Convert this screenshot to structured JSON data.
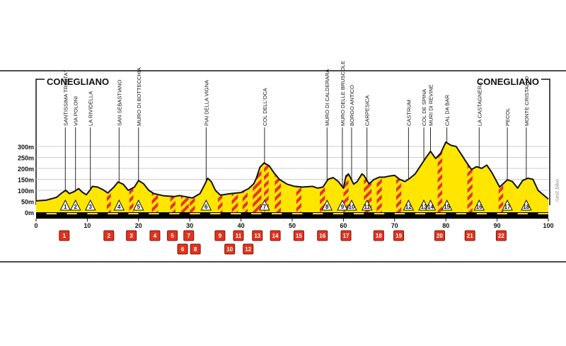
{
  "start_label": "CONEGLIANO",
  "end_label": "CONEGLIANO",
  "watermark": "nest.bike",
  "colors": {
    "profile_fill": "#ffe600",
    "profile_stroke": "#111111",
    "sector_stripe": "#e8322b",
    "marker_box": "#e2331d",
    "marker_box_border": "#7a140a",
    "track": "#000000",
    "gridline": "#bdbdbd",
    "triangle_fill": "#ffffff"
  },
  "chart_data": {
    "type": "area",
    "title": "",
    "xlabel": "",
    "ylabel": "",
    "xlim": [
      0,
      100
    ],
    "ylim": [
      0,
      300
    ],
    "grid": true,
    "x_ticks": [
      0,
      10,
      20,
      30,
      40,
      50,
      60,
      70,
      80,
      90,
      100
    ],
    "y_ticks": [
      {
        "value": 300,
        "label": "300m"
      },
      {
        "value": 250,
        "label": "250m"
      },
      {
        "value": 200,
        "label": "200m"
      },
      {
        "value": 150,
        "label": "150m"
      },
      {
        "value": 100,
        "label": "100m"
      },
      {
        "value": 50,
        "label": "50m"
      },
      {
        "value": 0,
        "label": "0m"
      }
    ],
    "profile": [
      [
        0,
        52
      ],
      [
        2,
        55
      ],
      [
        4,
        68
      ],
      [
        5,
        88
      ],
      [
        5.8,
        100
      ],
      [
        6.5,
        85
      ],
      [
        7.5,
        95
      ],
      [
        8.3,
        108
      ],
      [
        9,
        92
      ],
      [
        9.8,
        80
      ],
      [
        10.5,
        100
      ],
      [
        11,
        118
      ],
      [
        12,
        115
      ],
      [
        13,
        104
      ],
      [
        14,
        88
      ],
      [
        15.2,
        115
      ],
      [
        16,
        138
      ],
      [
        17,
        128
      ],
      [
        18,
        100
      ],
      [
        19.2,
        115
      ],
      [
        20,
        145
      ],
      [
        21,
        130
      ],
      [
        22,
        100
      ],
      [
        23,
        85
      ],
      [
        25,
        75
      ],
      [
        27,
        72
      ],
      [
        28,
        76
      ],
      [
        29,
        72
      ],
      [
        30.5,
        65
      ],
      [
        32,
        85
      ],
      [
        33,
        130
      ],
      [
        33.5,
        155
      ],
      [
        34.2,
        140
      ],
      [
        35,
        100
      ],
      [
        36,
        78
      ],
      [
        38,
        85
      ],
      [
        40,
        90
      ],
      [
        41.5,
        108
      ],
      [
        42.5,
        130
      ],
      [
        43,
        155
      ],
      [
        43.7,
        205
      ],
      [
        44.5,
        225
      ],
      [
        45.5,
        212
      ],
      [
        46.5,
        178
      ],
      [
        47.5,
        150
      ],
      [
        49,
        128
      ],
      [
        50.5,
        118
      ],
      [
        52,
        115
      ],
      [
        54,
        118
      ],
      [
        55,
        110
      ],
      [
        56,
        115
      ],
      [
        57,
        150
      ],
      [
        58,
        158
      ],
      [
        59,
        140
      ],
      [
        60,
        110
      ],
      [
        60.5,
        165
      ],
      [
        61,
        175
      ],
      [
        62,
        128
      ],
      [
        62.7,
        140
      ],
      [
        63.6,
        175
      ],
      [
        64,
        168
      ],
      [
        65,
        130
      ],
      [
        66,
        150
      ],
      [
        67,
        160
      ],
      [
        68,
        160
      ],
      [
        69,
        165
      ],
      [
        70,
        168
      ],
      [
        71,
        150
      ],
      [
        72,
        140
      ],
      [
        73,
        155
      ],
      [
        74,
        175
      ],
      [
        75,
        210
      ],
      [
        76,
        245
      ],
      [
        77,
        278
      ],
      [
        78,
        245
      ],
      [
        79,
        270
      ],
      [
        80,
        320
      ],
      [
        81,
        305
      ],
      [
        82,
        300
      ],
      [
        83,
        265
      ],
      [
        84,
        228
      ],
      [
        85,
        195
      ],
      [
        86,
        208
      ],
      [
        87,
        200
      ],
      [
        88,
        215
      ],
      [
        89,
        180
      ],
      [
        90.5,
        115
      ],
      [
        92,
        148
      ],
      [
        93,
        140
      ],
      [
        94,
        110
      ],
      [
        95,
        145
      ],
      [
        96,
        155
      ],
      [
        97,
        150
      ],
      [
        98,
        100
      ],
      [
        99.5,
        70
      ],
      [
        100,
        60
      ]
    ],
    "stripe_sectors": [
      [
        13.8,
        14.6
      ],
      [
        18.2,
        19
      ],
      [
        22.6,
        23.8
      ],
      [
        26.2,
        27.2
      ],
      [
        28.3,
        29.8
      ],
      [
        30,
        31
      ],
      [
        35.5,
        36.4
      ],
      [
        38.2,
        39.4
      ],
      [
        40.3,
        41.3
      ],
      [
        42.3,
        44
      ],
      [
        44.5,
        45.4
      ],
      [
        46.6,
        47.8
      ],
      [
        50.8,
        51.8
      ],
      [
        55.4,
        56.4
      ],
      [
        60,
        61
      ],
      [
        64,
        65.5
      ],
      [
        66.5,
        67.5
      ],
      [
        70.3,
        71.3
      ],
      [
        78.4,
        79.3
      ],
      [
        84.2,
        85.2
      ],
      [
        90.3,
        91.2
      ]
    ],
    "climbs": [
      {
        "num": "1",
        "name": "SANTISSIMA TRINITA'",
        "km": 5.7
      },
      {
        "num": "2",
        "name": "VIA POLONI",
        "km": 7.7
      },
      {
        "num": "3",
        "name": "LA RIVIDELLA",
        "km": 10.6
      },
      {
        "num": "4",
        "name": "SAN SEBASTIANO",
        "km": 16.2
      },
      {
        "num": "5",
        "name": "MURO DI BOTTECCHIA",
        "km": 20
      },
      {
        "num": "6",
        "name": "PIAI DELLA VIGNA",
        "km": 33.2
      },
      {
        "num": "7",
        "name": "COL DELL'OCA",
        "km": 44.6
      },
      {
        "num": "8",
        "name": "MURO DI CALDERARA",
        "km": 56.8
      },
      {
        "num": "9",
        "name": "MURO DELLE BRUSCOLE",
        "km": 59.8
      },
      {
        "num": "10",
        "name": "BORGO ANTICO",
        "km": 61.6
      },
      {
        "num": "11",
        "name": "CARPESICA",
        "km": 64.6
      },
      {
        "num": "12",
        "name": "CASTRUM",
        "km": 72.7
      },
      {
        "num": "13",
        "name": "COL DE SPINA",
        "km": 75.7
      },
      {
        "num": "14",
        "name": "MURI DI REVINE",
        "km": 77
      },
      {
        "num": "15",
        "name": "CAL DA BAR",
        "km": 80.2
      },
      {
        "num": "16",
        "name": "LA CASTAGNERA",
        "km": 86.5
      },
      {
        "num": "17",
        "name": "PECOL",
        "km": 92
      },
      {
        "num": "18",
        "name": "MONTE CRISTALLO",
        "km": 95.7
      }
    ],
    "sectors": [
      {
        "num": "1",
        "km": 5.5,
        "row": 0
      },
      {
        "num": "2",
        "km": 14.2,
        "row": 0
      },
      {
        "num": "3",
        "km": 18.6,
        "row": 0
      },
      {
        "num": "4",
        "km": 23.2,
        "row": 0
      },
      {
        "num": "5",
        "km": 26.6,
        "row": 0
      },
      {
        "num": "6",
        "km": 28.6,
        "row": 1
      },
      {
        "num": "7",
        "km": 29.8,
        "row": 0
      },
      {
        "num": "8",
        "km": 31.1,
        "row": 1
      },
      {
        "num": "9",
        "km": 35.9,
        "row": 0
      },
      {
        "num": "10",
        "km": 37.8,
        "row": 1
      },
      {
        "num": "11",
        "km": 39.5,
        "row": 0
      },
      {
        "num": "12",
        "km": 41.4,
        "row": 1
      },
      {
        "num": "13",
        "km": 43.2,
        "row": 0
      },
      {
        "num": "14",
        "km": 46.7,
        "row": 0
      },
      {
        "num": "15",
        "km": 51.3,
        "row": 0
      },
      {
        "num": "16",
        "km": 55.9,
        "row": 0
      },
      {
        "num": "17",
        "km": 60.5,
        "row": 0
      },
      {
        "num": "18",
        "km": 66.9,
        "row": 0
      },
      {
        "num": "19",
        "km": 70.8,
        "row": 0
      },
      {
        "num": "20",
        "km": 78.8,
        "row": 0
      },
      {
        "num": "21",
        "km": 84.7,
        "row": 0
      },
      {
        "num": "22",
        "km": 90.8,
        "row": 0
      }
    ]
  }
}
